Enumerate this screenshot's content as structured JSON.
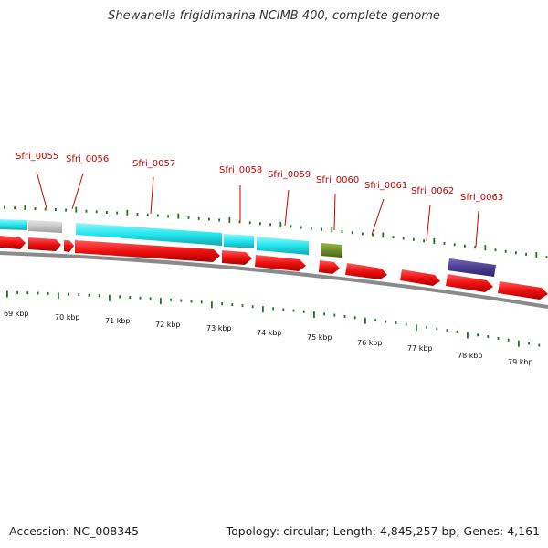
{
  "title": "Shewanella frigidimarina NCIMB 400, complete genome",
  "accession": "Accession: NC_008345",
  "topology": "Topology: circular; Length: 4,845,257 bp; Genes: 4,161",
  "colors": {
    "gene_label": "#cc0000",
    "cds": "#ee1111",
    "cyan_feature": "#22e6ee",
    "grey_feature": "#c8c8c8",
    "olive_feature": "#6f8f2a",
    "purple_feature": "#4a3e8f",
    "tick": "#1a7a1a",
    "backbone": "#888888"
  },
  "genes": [
    {
      "name": "Sfri_0055"
    },
    {
      "name": "Sfri_0056"
    },
    {
      "name": "Sfri_0057"
    },
    {
      "name": "Sfri_0058"
    },
    {
      "name": "Sfri_0059"
    },
    {
      "name": "Sfri_0060"
    },
    {
      "name": "Sfri_0061"
    },
    {
      "name": "Sfri_0062"
    },
    {
      "name": "Sfri_0063"
    }
  ],
  "scale": [
    "69 kbp",
    "70 kbp",
    "71 kbp",
    "72 kbp",
    "73 kbp",
    "74 kbp",
    "75 kbp",
    "76 kbp",
    "77 kbp",
    "78 kbp",
    "79 kbp"
  ]
}
